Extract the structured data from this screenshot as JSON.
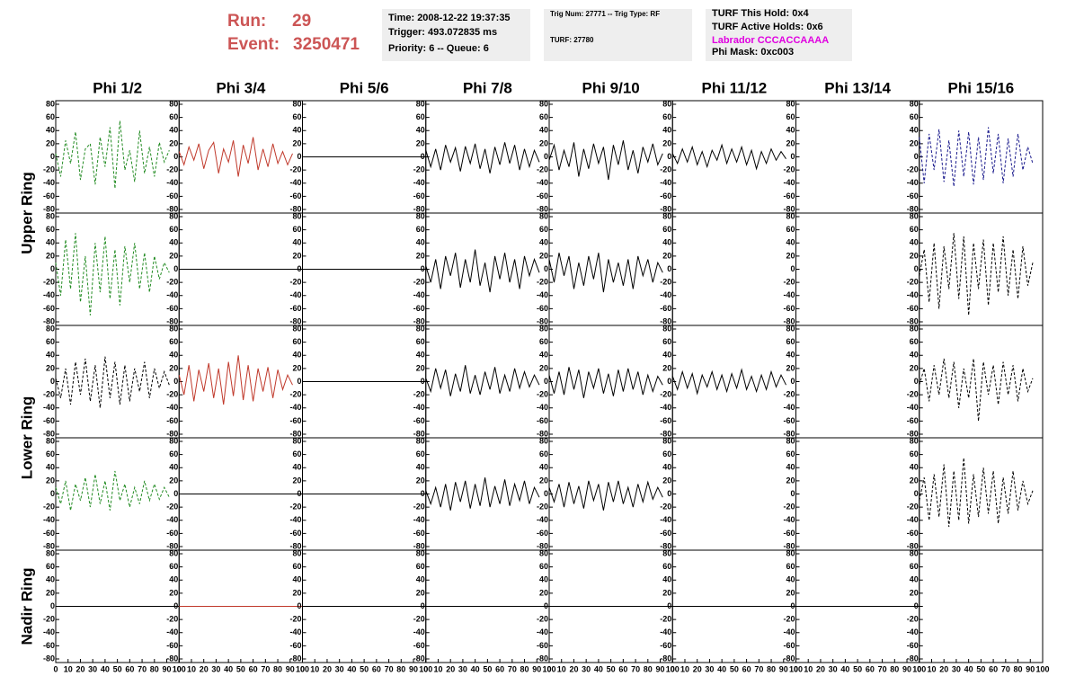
{
  "header": {
    "run_label": "Run:",
    "run": 29,
    "event_label": "Event:",
    "event": 3250471,
    "info_boxes": [
      [
        "Time: 2008-12-22 19:37:35",
        "Trigger: 493.072835 ms",
        "Priority: 6 -- Queue: 6"
      ],
      [
        "Trig Num: 27771 -- Trig Type: RF",
        "TURF: 27780"
      ],
      [
        "TURF This Hold: 0x4",
        "TURF Active Holds: 0x6",
        "Labrador CCCACCAAAA",
        "Phi Mask: 0xc003"
      ]
    ]
  },
  "columns": [
    "Phi 1/2",
    "Phi 3/4",
    "Phi 5/6",
    "Phi 7/8",
    "Phi 9/10",
    "Phi 11/12",
    "Phi 13/14",
    "Phi 15/16"
  ],
  "rows": [
    "Upper Ring",
    "Lower Ring",
    "Nadir Ring"
  ],
  "chart_data": {
    "type": "line",
    "xlim": [
      0,
      100
    ],
    "ylim": [
      -80,
      80
    ],
    "xticks": [
      0,
      10,
      20,
      30,
      40,
      50,
      60,
      70,
      80,
      90,
      100
    ],
    "yticks": [
      -80,
      -60,
      -40,
      -20,
      0,
      20,
      40,
      60,
      80
    ],
    "x": [
      0,
      4,
      8,
      12,
      16,
      20,
      24,
      28,
      32,
      36,
      40,
      44,
      48,
      52,
      56,
      60,
      64,
      68,
      72,
      76,
      80,
      84,
      88,
      92
    ],
    "panels": [
      [
        {
          "color": "#228b22",
          "dashed": true,
          "values": [
            5,
            -30,
            25,
            -10,
            38,
            -35,
            12,
            20,
            -42,
            30,
            -15,
            45,
            -48,
            55,
            -20,
            10,
            -38,
            40,
            -25,
            15,
            -30,
            22,
            -8,
            10
          ]
        },
        {
          "color": "#c0392b",
          "dashed": false,
          "values": [
            8,
            -12,
            15,
            -5,
            20,
            -18,
            10,
            22,
            -25,
            12,
            -8,
            25,
            -30,
            18,
            -10,
            30,
            -20,
            12,
            -15,
            20,
            -10,
            8,
            -12,
            5
          ]
        },
        {
          "color": "#000000",
          "dashed": false,
          "x": [
            0,
            100
          ],
          "values": [
            0,
            0
          ]
        },
        {
          "color": "#000000",
          "dashed": false,
          "values": [
            10,
            -15,
            12,
            -20,
            18,
            -8,
            14,
            -22,
            16,
            -10,
            20,
            -18,
            12,
            -25,
            15,
            -12,
            22,
            -10,
            18,
            -20,
            12,
            -15,
            10,
            -8
          ]
        },
        {
          "color": "#000000",
          "dashed": false,
          "values": [
            -5,
            18,
            -20,
            10,
            -15,
            22,
            -30,
            12,
            -18,
            20,
            -10,
            15,
            -35,
            18,
            -12,
            25,
            -20,
            10,
            -25,
            15,
            -8,
            20,
            -12,
            5
          ]
        },
        {
          "color": "#000000",
          "dashed": false,
          "values": [
            5,
            -10,
            12,
            -8,
            15,
            -12,
            8,
            -15,
            10,
            -5,
            18,
            -10,
            12,
            -8,
            15,
            -12,
            10,
            -18,
            8,
            -10,
            12,
            -5,
            8,
            -3
          ]
        },
        null,
        {
          "color": "#1a1a8c",
          "dashed": true,
          "values": [
            30,
            -40,
            35,
            -20,
            42,
            -38,
            25,
            -45,
            40,
            -30,
            38,
            -42,
            30,
            -35,
            45,
            -25,
            35,
            -40,
            28,
            -30,
            35,
            -20,
            15,
            -10
          ]
        }
      ],
      [
        {
          "color": "#228b22",
          "dashed": true,
          "values": [
            10,
            -40,
            45,
            -30,
            55,
            -50,
            20,
            -70,
            40,
            -35,
            50,
            -45,
            30,
            -55,
            35,
            -20,
            40,
            -30,
            25,
            -35,
            20,
            -15,
            10,
            -5
          ]
        },
        {
          "color": "#000000",
          "dashed": false,
          "x": [
            0,
            100
          ],
          "values": [
            0,
            0
          ]
        },
        {
          "color": "#000000",
          "dashed": false,
          "x": [
            0,
            100
          ],
          "values": [
            0,
            0
          ]
        },
        {
          "color": "#000000",
          "dashed": false,
          "values": [
            5,
            -20,
            15,
            -30,
            20,
            -10,
            25,
            -28,
            15,
            -20,
            30,
            -25,
            10,
            -35,
            20,
            -15,
            25,
            -20,
            15,
            -30,
            20,
            -10,
            15,
            -5
          ]
        },
        {
          "color": "#000000",
          "dashed": false,
          "values": [
            15,
            -20,
            25,
            -10,
            20,
            -30,
            10,
            -25,
            20,
            -15,
            25,
            -35,
            15,
            -20,
            10,
            -25,
            15,
            -30,
            20,
            -10,
            15,
            -20,
            10,
            -5
          ]
        },
        null,
        null,
        {
          "color": "#000000",
          "dashed": true,
          "values": [
            -10,
            30,
            -50,
            40,
            -60,
            35,
            -30,
            55,
            -45,
            50,
            -70,
            40,
            -30,
            45,
            -55,
            40,
            -35,
            50,
            -40,
            30,
            -45,
            35,
            -25,
            10
          ]
        }
      ],
      [
        {
          "color": "#000000",
          "dashed": true,
          "values": [
            5,
            -25,
            20,
            -35,
            30,
            -20,
            35,
            -30,
            25,
            -40,
            38,
            -25,
            30,
            -35,
            25,
            -30,
            20,
            -15,
            30,
            -25,
            20,
            -10,
            15,
            -5
          ]
        },
        {
          "color": "#c0392b",
          "dashed": false,
          "values": [
            10,
            -20,
            25,
            -30,
            18,
            -15,
            28,
            -25,
            20,
            -35,
            30,
            -22,
            40,
            -28,
            25,
            -30,
            20,
            -15,
            22,
            -25,
            18,
            -12,
            10,
            -5
          ]
        },
        {
          "color": "#000000",
          "dashed": false,
          "x": [
            0,
            100
          ],
          "values": [
            0,
            0
          ]
        },
        {
          "color": "#000000",
          "dashed": false,
          "values": [
            5,
            -15,
            20,
            -10,
            18,
            -22,
            12,
            -15,
            25,
            -18,
            10,
            -20,
            15,
            -12,
            22,
            -18,
            10,
            -15,
            20,
            -10,
            15,
            -8,
            10,
            -5
          ]
        },
        {
          "color": "#000000",
          "dashed": false,
          "values": [
            10,
            -18,
            15,
            -20,
            22,
            -12,
            18,
            -25,
            15,
            -10,
            20,
            -18,
            12,
            -22,
            18,
            -15,
            20,
            -12,
            15,
            -20,
            10,
            -15,
            8,
            -5
          ]
        },
        {
          "color": "#000000",
          "dashed": false,
          "values": [
            8,
            -12,
            15,
            -10,
            12,
            -18,
            10,
            -8,
            15,
            -12,
            10,
            -15,
            12,
            -10,
            18,
            -12,
            8,
            -15,
            10,
            -12,
            15,
            -8,
            10,
            -5
          ]
        },
        null,
        {
          "color": "#000000",
          "dashed": true,
          "values": [
            -5,
            20,
            -30,
            25,
            -20,
            35,
            -25,
            30,
            -40,
            20,
            -25,
            35,
            -60,
            30,
            -20,
            25,
            -35,
            30,
            -20,
            25,
            -30,
            20,
            -15,
            5
          ]
        }
      ],
      [
        {
          "color": "#228b22",
          "dashed": true,
          "values": [
            10,
            -15,
            20,
            -25,
            15,
            -10,
            25,
            -20,
            30,
            -15,
            20,
            -25,
            35,
            -10,
            15,
            -20,
            10,
            -15,
            20,
            -10,
            15,
            -8,
            10,
            -5
          ]
        },
        {
          "color": "#000000",
          "dashed": false,
          "x": [
            0,
            100
          ],
          "values": [
            0,
            0
          ]
        },
        {
          "color": "#000000",
          "dashed": false,
          "x": [
            0,
            100
          ],
          "values": [
            0,
            0
          ]
        },
        {
          "color": "#000000",
          "dashed": false,
          "values": [
            5,
            -15,
            10,
            -20,
            15,
            -25,
            18,
            -12,
            20,
            -22,
            15,
            -18,
            25,
            -20,
            12,
            -15,
            22,
            -18,
            15,
            -10,
            20,
            -15,
            10,
            -5
          ]
        },
        {
          "color": "#000000",
          "dashed": false,
          "values": [
            10,
            -12,
            15,
            -20,
            18,
            -15,
            12,
            -22,
            20,
            -10,
            15,
            -25,
            18,
            -12,
            20,
            -15,
            10,
            -20,
            15,
            -12,
            18,
            -8,
            10,
            -5
          ]
        },
        null,
        null,
        {
          "color": "#000000",
          "dashed": true,
          "values": [
            -10,
            25,
            -40,
            30,
            -35,
            45,
            -50,
            35,
            -40,
            55,
            -45,
            30,
            -35,
            40,
            -30,
            35,
            -45,
            25,
            -30,
            35,
            -25,
            20,
            -15,
            5
          ]
        }
      ],
      [
        {
          "color": "#000000",
          "dashed": false,
          "x": [
            0,
            100
          ],
          "values": [
            0,
            0
          ]
        },
        {
          "color": "#c0392b",
          "dashed": false,
          "x": [
            0,
            100
          ],
          "values": [
            0,
            0
          ]
        },
        {
          "color": "#000000",
          "dashed": false,
          "x": [
            0,
            100
          ],
          "values": [
            0,
            0
          ]
        },
        {
          "color": "#000000",
          "dashed": false,
          "x": [
            0,
            100
          ],
          "values": [
            0,
            0
          ]
        },
        {
          "color": "#000000",
          "dashed": false,
          "x": [
            0,
            100
          ],
          "values": [
            0,
            0
          ]
        },
        {
          "color": "#000000",
          "dashed": false,
          "x": [
            0,
            100
          ],
          "values": [
            0,
            0
          ]
        },
        {
          "color": "#000000",
          "dashed": false,
          "x": [
            0,
            100
          ],
          "values": [
            0,
            0
          ]
        },
        null
      ]
    ]
  }
}
